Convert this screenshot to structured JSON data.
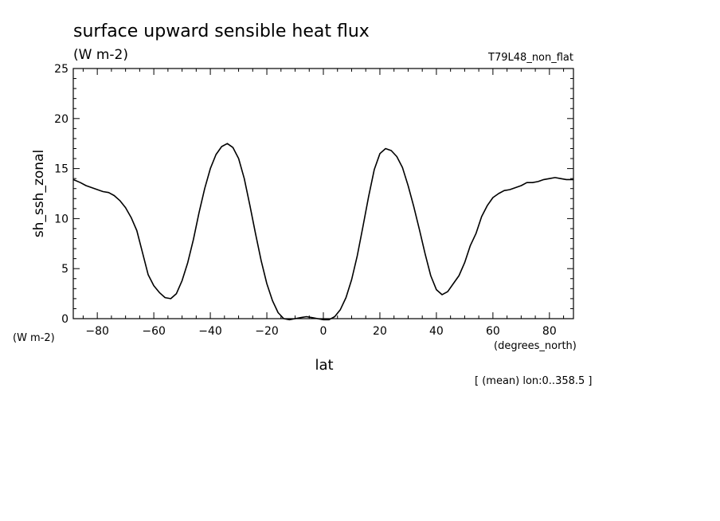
{
  "chart_data": {
    "type": "line",
    "title": "surface upward sensible heat flux",
    "title_units": "(W m-2)",
    "run_label": "T79L48_non_flat",
    "xlabel": "lat",
    "x_units": "(degrees_north)",
    "ylabel": "sh_ssh_zonal",
    "y_units": "(W m-2)",
    "footnote": "[ (mean) lon:0..358.5 ]",
    "xlim": [
      -88.5,
      88.5
    ],
    "ylim": [
      0,
      25
    ],
    "x_ticks": [
      -80,
      -60,
      -40,
      -20,
      0,
      20,
      40,
      60,
      80
    ],
    "y_ticks": [
      0,
      5,
      10,
      15,
      20,
      25
    ],
    "grid": false,
    "series": [
      {
        "x": [
          -88.5,
          -86,
          -84,
          -82,
          -80,
          -78,
          -76,
          -74,
          -72,
          -70,
          -68,
          -66,
          -64,
          -62,
          -60,
          -58,
          -56,
          -54,
          -52,
          -50,
          -48,
          -46,
          -44,
          -42,
          -40,
          -38,
          -36,
          -34,
          -32,
          -30,
          -28,
          -26,
          -24,
          -22,
          -20,
          -18,
          -16,
          -14,
          -12,
          -10,
          -8,
          -6,
          -4,
          -2,
          0,
          2,
          4,
          6,
          8,
          10,
          12,
          14,
          16,
          18,
          20,
          22,
          24,
          26,
          28,
          30,
          32,
          34,
          36,
          38,
          40,
          42,
          44,
          46,
          48,
          50,
          52,
          54,
          56,
          58,
          60,
          62,
          64,
          66,
          68,
          70,
          72,
          74,
          76,
          78,
          80,
          82,
          84,
          86,
          88.5
        ],
        "y": [
          13.9,
          13.6,
          13.3,
          13.1,
          12.9,
          12.7,
          12.6,
          12.3,
          11.8,
          11.1,
          10.1,
          8.8,
          6.6,
          4.4,
          3.3,
          2.6,
          2.1,
          2.0,
          2.5,
          3.8,
          5.6,
          7.9,
          10.6,
          13.0,
          15.0,
          16.4,
          17.2,
          17.5,
          17.1,
          16.0,
          14.0,
          11.3,
          8.5,
          5.8,
          3.5,
          1.8,
          0.6,
          0.0,
          -0.1,
          0.0,
          0.1,
          0.2,
          0.1,
          0.0,
          -0.1,
          -0.1,
          0.2,
          0.9,
          2.1,
          3.9,
          6.3,
          9.2,
          12.2,
          14.9,
          16.5,
          17.0,
          16.8,
          16.2,
          15.1,
          13.3,
          11.2,
          8.9,
          6.5,
          4.3,
          2.9,
          2.4,
          2.7,
          3.5,
          4.3,
          5.6,
          7.3,
          8.5,
          10.2,
          11.3,
          12.1,
          12.5,
          12.8,
          12.9,
          13.1,
          13.3,
          13.6,
          13.6,
          13.7,
          13.9,
          14.0,
          14.1,
          14.0,
          13.9,
          13.9
        ]
      }
    ]
  }
}
